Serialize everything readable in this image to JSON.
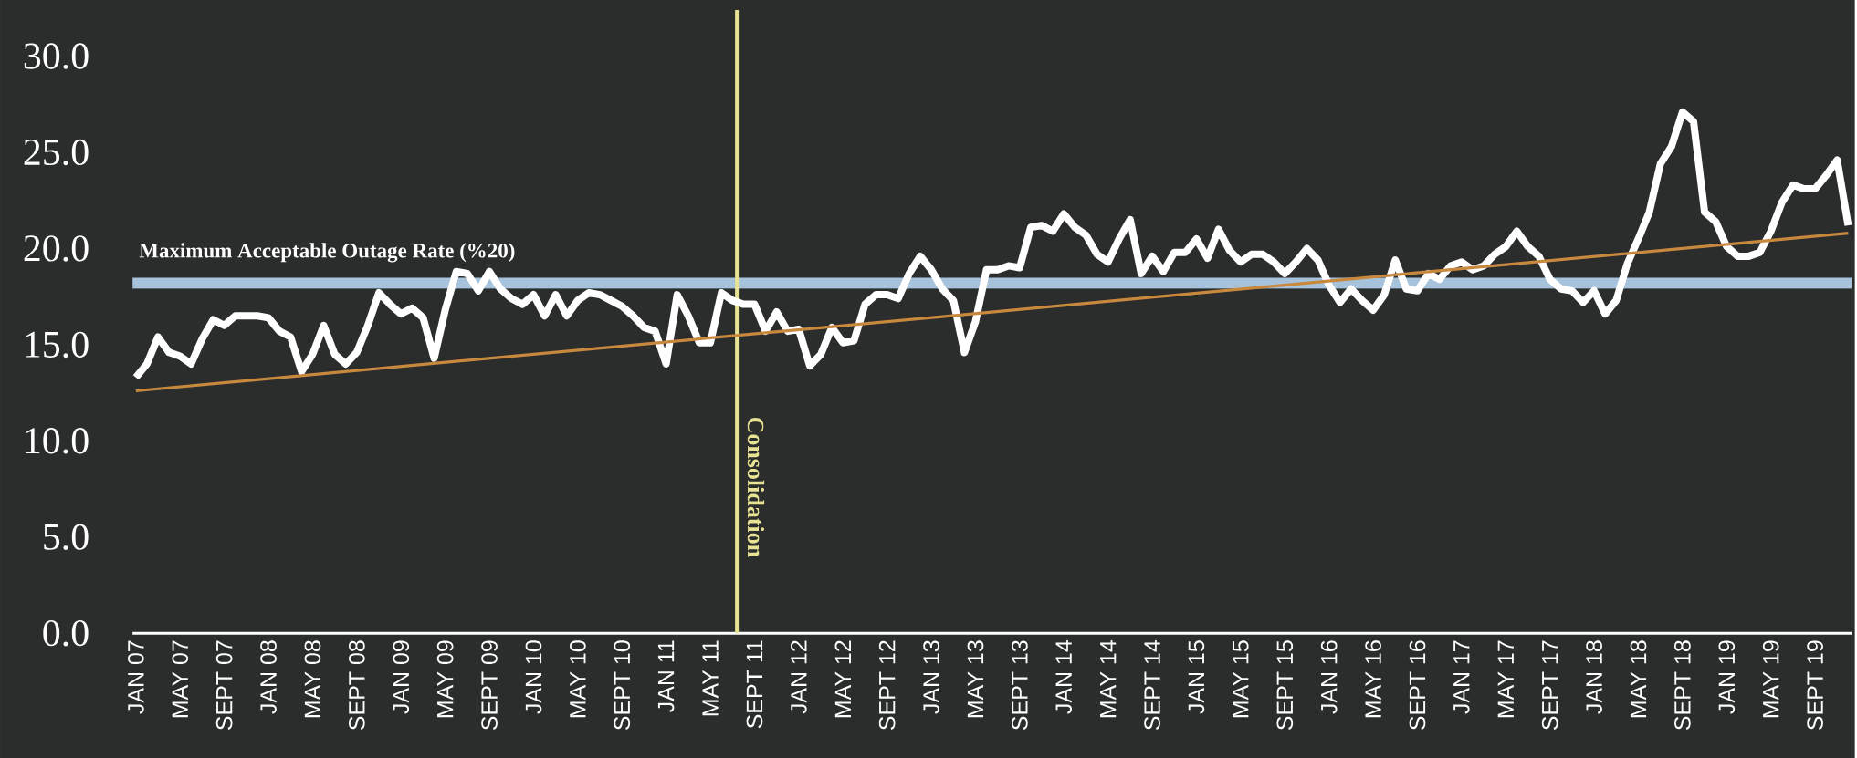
{
  "chart_data": {
    "type": "line",
    "categories": [
      "JAN 07",
      null,
      null,
      null,
      "MAY 07",
      null,
      null,
      null,
      "SEPT 07",
      null,
      null,
      null,
      "JAN 08",
      null,
      null,
      null,
      "MAY 08",
      null,
      null,
      null,
      "SEPT 08",
      null,
      null,
      null,
      "JAN 09",
      null,
      null,
      null,
      "MAY 09",
      null,
      null,
      null,
      "SEPT 09",
      null,
      null,
      null,
      "JAN 10",
      null,
      null,
      null,
      "MAY 10",
      null,
      null,
      null,
      "SEPT 10",
      null,
      null,
      null,
      "JAN 11",
      null,
      null,
      null,
      "MAY 11",
      null,
      null,
      null,
      "SEPT 11",
      null,
      null,
      null,
      "JAN 12",
      null,
      null,
      null,
      "MAY 12",
      null,
      null,
      null,
      "SEPT 12",
      null,
      null,
      null,
      "JAN 13",
      null,
      null,
      null,
      "MAY 13",
      null,
      null,
      null,
      "SEPT 13",
      null,
      null,
      null,
      "JAN 14",
      null,
      null,
      null,
      "MAY 14",
      null,
      null,
      null,
      "SEPT 14",
      null,
      null,
      null,
      "JAN 15",
      null,
      null,
      null,
      "MAY 15",
      null,
      null,
      null,
      "SEPT 15",
      null,
      null,
      null,
      "JAN 16",
      null,
      null,
      null,
      "MAY 16",
      null,
      null,
      null,
      "SEPT 16",
      null,
      null,
      null,
      "JAN 17",
      null,
      null,
      null,
      "MAY 17",
      null,
      null,
      null,
      "SEPT 17",
      null,
      null,
      null,
      "JAN 18",
      null,
      null,
      null,
      "MAY 18",
      null,
      null,
      null,
      "SEPT 18",
      null,
      null,
      null,
      "JAN 19",
      null,
      null,
      null,
      "MAY 19",
      null,
      null,
      null,
      "SEPT 19",
      null,
      null,
      null
    ],
    "series": [
      {
        "color": "#ffffff",
        "values": [
          13.3,
          14.0,
          15.4,
          14.6,
          14.4,
          14.0,
          15.3,
          16.3,
          16.0,
          16.5,
          16.5,
          16.5,
          16.4,
          15.7,
          15.4,
          13.6,
          14.5,
          16.0,
          14.5,
          14.0,
          14.6,
          16.0,
          17.7,
          17.1,
          16.6,
          16.9,
          16.4,
          14.3,
          16.8,
          18.8,
          18.7,
          17.8,
          18.8,
          17.9,
          17.4,
          17.1,
          17.6,
          16.5,
          17.6,
          16.5,
          17.3,
          17.7,
          17.6,
          17.3,
          17.0,
          16.5,
          15.9,
          15.7,
          14.0,
          17.6,
          16.5,
          15.1,
          15.1,
          17.7,
          17.3,
          17.1,
          17.1,
          15.7,
          16.7,
          15.7,
          15.8,
          13.9,
          14.5,
          15.9,
          15.1,
          15.2,
          17.1,
          17.6,
          17.6,
          17.4,
          18.7,
          19.6,
          18.9,
          17.9,
          17.3,
          14.6,
          16.2,
          18.9,
          18.9,
          19.1,
          19.0,
          21.1,
          21.2,
          20.9,
          21.8,
          21.1,
          20.7,
          19.7,
          19.3,
          20.5,
          21.5,
          18.7,
          19.6,
          18.8,
          19.8,
          19.8,
          20.5,
          19.5,
          21.0,
          19.9,
          19.3,
          19.7,
          19.7,
          19.3,
          18.7,
          19.3,
          20.0,
          19.4,
          18.1,
          17.2,
          17.9,
          17.3,
          16.8,
          17.6,
          19.4,
          17.9,
          17.8,
          18.7,
          18.4,
          19.1,
          19.3,
          18.9,
          19.1,
          19.7,
          20.1,
          20.9,
          20.1,
          19.6,
          18.4,
          17.9,
          17.8,
          17.2,
          17.8,
          16.6,
          17.3,
          19.2,
          20.5,
          21.9,
          24.4,
          25.3,
          27.1,
          26.6,
          21.9,
          21.4,
          20.1,
          19.6,
          19.6,
          19.8,
          20.9,
          22.4,
          23.3,
          23.1,
          23.1,
          23.8,
          24.6,
          21.2
        ]
      },
      {
        "type": "line",
        "color": "#c8893e",
        "values": [
          12.6,
          null,
          null,
          null,
          null,
          null,
          null,
          null,
          null,
          null,
          null,
          null,
          null,
          null,
          null,
          null,
          null,
          null,
          null,
          null,
          null,
          null,
          null,
          null,
          null,
          null,
          null,
          null,
          null,
          null,
          null,
          null,
          null,
          null,
          null,
          null,
          null,
          null,
          null,
          null,
          null,
          null,
          null,
          null,
          null,
          null,
          null,
          null,
          null,
          null,
          null,
          null,
          null,
          null,
          null,
          null,
          null,
          null,
          null,
          null,
          null,
          null,
          null,
          null,
          null,
          null,
          null,
          null,
          null,
          null,
          null,
          null,
          null,
          null,
          null,
          null,
          null,
          null,
          null,
          null,
          null,
          null,
          null,
          null,
          null,
          null,
          null,
          null,
          null,
          null,
          null,
          null,
          null,
          null,
          null,
          null,
          null,
          null,
          null,
          null,
          null,
          null,
          null,
          null,
          null,
          null,
          null,
          null,
          null,
          null,
          null,
          null,
          null,
          null,
          null,
          null,
          null,
          null,
          null,
          null,
          null,
          null,
          null,
          null,
          null,
          null,
          null,
          null,
          null,
          null,
          null,
          null,
          null,
          null,
          null,
          null,
          null,
          null,
          null,
          null,
          null,
          null,
          null,
          null,
          null,
          null,
          null,
          null,
          null,
          null,
          null,
          null,
          null,
          null,
          null,
          20.8
        ]
      }
    ],
    "ylim": [
      0,
      32.4
    ],
    "yticks": [
      {
        "value": 0,
        "label": "0.0"
      },
      {
        "value": 5,
        "label": "5.0"
      },
      {
        "value": 10,
        "label": "10.0"
      },
      {
        "value": 15,
        "label": "15.0"
      },
      {
        "value": 20,
        "label": "20.0"
      },
      {
        "value": 25,
        "label": "25.0"
      },
      {
        "value": 30,
        "label": "30.0"
      }
    ],
    "ref_lines": [
      {
        "axis": "y",
        "value": 18.2,
        "label": "Maximum Acceptable Outage Rate (%20)",
        "color": "#a7c3dc"
      }
    ],
    "annotations": [
      "Consolidation"
    ],
    "grid": false,
    "marker": "none",
    "line_style": "solid"
  }
}
